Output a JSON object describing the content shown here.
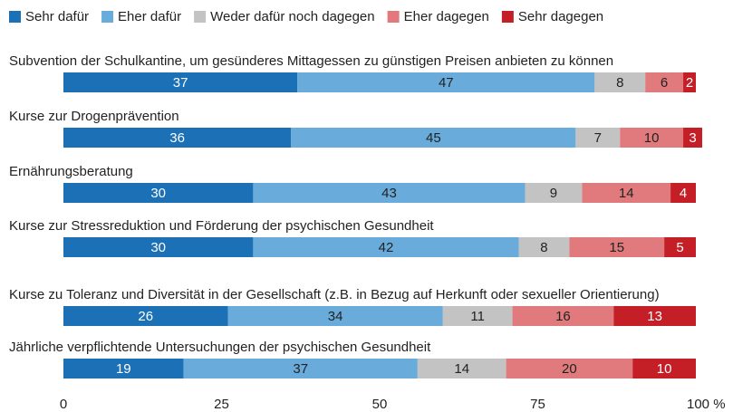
{
  "chart_data": {
    "type": "stacked_barh",
    "categories": [
      "Subvention der Schulkantine, um gesünderes Mittagessen zu günstigen Preisen anbieten zu können",
      "Kurse zur Drogenprävention",
      "Ernährungsberatung",
      "Kurse zur Stressreduktion und Förderung der psychischen Gesundheit",
      "Kurse zu Toleranz und Diversität in der Gesellschaft (z.B. in Bezug auf Herkunft oder sexueller Orientierung)",
      "Jährliche verpflichtende Untersuchungen der psychischen Gesundheit"
    ],
    "series": [
      {
        "name": "Sehr dafür",
        "color": "#1b70b6",
        "label_color": "#ffffff",
        "values": [
          37,
          36,
          30,
          30,
          26,
          19
        ]
      },
      {
        "name": "Eher dafür",
        "color": "#69acdc",
        "label_color": "#222222",
        "values": [
          47,
          45,
          43,
          42,
          34,
          37
        ]
      },
      {
        "name": "Weder dafür noch dagegen",
        "color": "#c3c3c3",
        "label_color": "#222222",
        "values": [
          8,
          7,
          9,
          8,
          11,
          14
        ]
      },
      {
        "name": "Eher dagegen",
        "color": "#e07a7c",
        "label_color": "#222222",
        "values": [
          6,
          10,
          14,
          15,
          16,
          20
        ]
      },
      {
        "name": "Sehr dagegen",
        "color": "#c41e26",
        "label_color": "#ffffff",
        "values": [
          2,
          3,
          4,
          5,
          13,
          10
        ]
      }
    ],
    "xlim": [
      0,
      100
    ],
    "xticks": [
      0,
      25,
      50,
      75,
      {
        "value": 100,
        "label": "100 %"
      }
    ],
    "grid": false
  }
}
